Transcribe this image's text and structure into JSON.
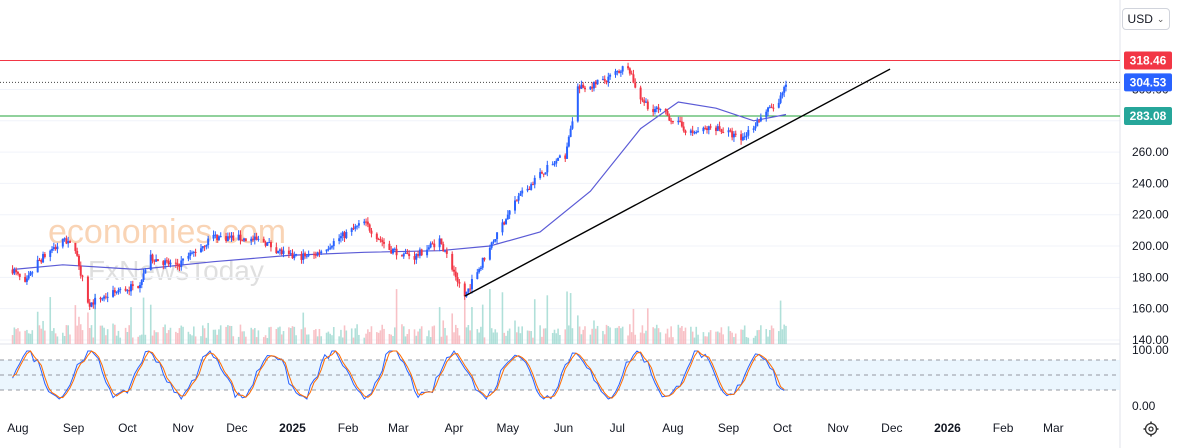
{
  "currency": {
    "label": "USD",
    "chevron": "⌄"
  },
  "watermark": {
    "brand": "economies.com",
    "sub": "FxNewsToday"
  },
  "colors": {
    "up": "#2962ff",
    "down": "#f23645",
    "ma": "#5b5bd6",
    "resistance": "#f23645",
    "current": "#2962ff",
    "support": "#26a69a",
    "supportLine": "#22a33a",
    "stochK": "#2962ff",
    "stochD": "#ff6d00",
    "trendline": "#000000"
  },
  "icons": {
    "settings": "gear-icon"
  },
  "chart_data": {
    "type": "candlestick",
    "ylim": [
      140,
      322
    ],
    "y_ticks": [
      140,
      160,
      180,
      200,
      220,
      240,
      260,
      280,
      300
    ],
    "y_tick_labels": [
      "140.00",
      "160.00",
      "180.00",
      "200.00",
      "220.00",
      "240.00",
      "260.00",
      "280.00",
      "300.00"
    ],
    "x_labels": [
      "Aug",
      "Sep",
      "Oct",
      "Nov",
      "Dec",
      "2025",
      "Feb",
      "Mar",
      "Apr",
      "May",
      "Jun",
      "Jul",
      "Aug",
      "Sep",
      "Oct",
      "Nov",
      "Dec",
      "2026",
      "Feb",
      "Mar"
    ],
    "price_levels": [
      {
        "label": "318.46",
        "value": 318.46,
        "role": "resistance"
      },
      {
        "label": "304.53",
        "value": 304.53,
        "role": "current"
      },
      {
        "label": "283.08",
        "value": 283.08,
        "role": "support"
      }
    ],
    "price_path": [
      [
        "2024-07-29",
        185
      ],
      [
        "2024-08-05",
        175
      ],
      [
        "2024-08-12",
        190
      ],
      [
        "2024-08-26",
        203
      ],
      [
        "2024-09-02",
        199
      ],
      [
        "2024-09-09",
        163
      ],
      [
        "2024-09-23",
        170
      ],
      [
        "2024-10-07",
        175
      ],
      [
        "2024-10-14",
        193
      ],
      [
        "2024-10-28",
        187
      ],
      [
        "2024-11-04",
        193
      ],
      [
        "2024-11-18",
        206
      ],
      [
        "2024-12-02",
        205
      ],
      [
        "2024-12-16",
        203
      ],
      [
        "2024-12-30",
        193
      ],
      [
        "2025-01-13",
        194
      ],
      [
        "2025-01-27",
        205
      ],
      [
        "2025-02-10",
        215
      ],
      [
        "2025-02-24",
        198
      ],
      [
        "2025-03-10",
        193
      ],
      [
        "2025-03-24",
        204
      ],
      [
        "2025-04-07",
        168
      ],
      [
        "2025-04-21",
        200
      ],
      [
        "2025-05-05",
        228
      ],
      [
        "2025-05-19",
        246
      ],
      [
        "2025-06-02",
        258
      ],
      [
        "2025-06-09",
        300
      ],
      [
        "2025-06-23",
        305
      ],
      [
        "2025-07-07",
        316
      ],
      [
        "2025-07-14",
        292
      ],
      [
        "2025-07-28",
        284
      ],
      [
        "2025-08-11",
        272
      ],
      [
        "2025-08-25",
        276
      ],
      [
        "2025-09-08",
        268
      ],
      [
        "2025-09-22",
        286
      ],
      [
        "2025-09-29",
        291
      ],
      [
        "2025-10-03",
        304.53
      ]
    ],
    "moving_average": [
      [
        "2024-07-29",
        185
      ],
      [
        "2024-08-26",
        188
      ],
      [
        "2024-10-07",
        185
      ],
      [
        "2024-11-18",
        190
      ],
      [
        "2024-12-30",
        194
      ],
      [
        "2025-02-10",
        196
      ],
      [
        "2025-03-24",
        197
      ],
      [
        "2025-04-21",
        200
      ],
      [
        "2025-05-19",
        209
      ],
      [
        "2025-06-16",
        235
      ],
      [
        "2025-07-14",
        275
      ],
      [
        "2025-08-04",
        292
      ],
      [
        "2025-08-25",
        288
      ],
      [
        "2025-09-15",
        280
      ],
      [
        "2025-10-03",
        284
      ]
    ],
    "trendline": {
      "start": [
        "2025-04-07",
        168
      ],
      "end": [
        "2025-11-30",
        313
      ]
    },
    "stochastic": {
      "ylim": [
        0,
        100
      ],
      "upper": 80,
      "middle": 50,
      "lower": 20,
      "tick_labels": [
        "100.00",
        "0.00"
      ]
    }
  }
}
